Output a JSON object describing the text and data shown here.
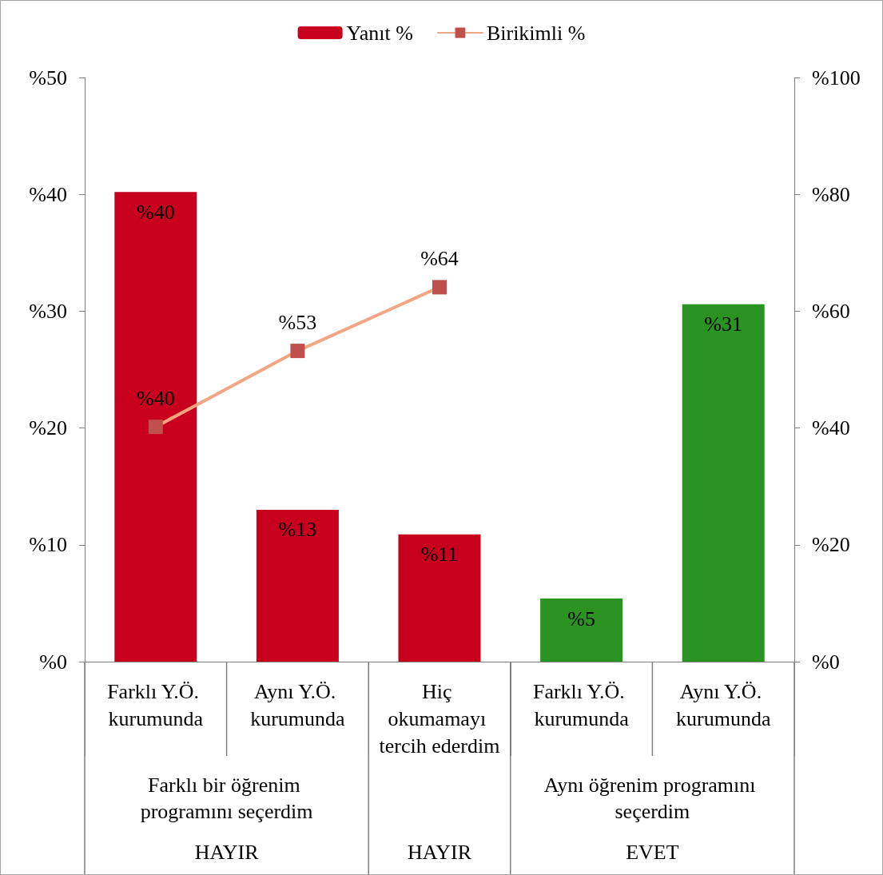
{
  "chart_data": {
    "type": "bar",
    "categories": [
      "Farklı Y.Ö. kurumunda",
      "Aynı Y.Ö. kurumunda",
      "Hiç okumamayı tercih ederdim",
      "Farklı Y.Ö. kurumunda",
      "Aynı Y.Ö. kurumunda"
    ],
    "series": [
      {
        "name": "Yanıt %",
        "colors": [
          "#c8001e",
          "#c8001e",
          "#c8001e",
          "#2a9322",
          "#2a9322"
        ],
        "values": [
          40.2,
          13,
          10.9,
          5.4,
          30.6
        ],
        "value_labels": [
          "%40",
          "%13",
          "%11",
          "%5",
          "%31"
        ]
      },
      {
        "name": "Birikimli %",
        "type": "line",
        "axis": "y2",
        "color": "#f4a582",
        "marker": "square",
        "values": [
          40.2,
          53.2,
          64.1,
          null,
          null
        ],
        "value_labels": [
          "%40",
          "%53",
          "%64",
          null,
          null
        ]
      }
    ],
    "ylim": [
      0,
      50
    ],
    "yticks": [
      {
        "value": 0,
        "label": "%0"
      },
      {
        "value": 10,
        "label": "%10"
      },
      {
        "value": 20,
        "label": "%20"
      },
      {
        "value": 30,
        "label": "%30"
      },
      {
        "value": 40,
        "label": "%40"
      },
      {
        "value": 50,
        "label": "%50"
      }
    ],
    "y2lim": [
      0,
      100
    ],
    "y2ticks": [
      {
        "value": 0,
        "label": "%0"
      },
      {
        "value": 20,
        "label": "%20"
      },
      {
        "value": 40,
        "label": "%40"
      },
      {
        "value": 60,
        "label": "%60"
      },
      {
        "value": 80,
        "label": "%80"
      },
      {
        "value": 100,
        "label": "%100"
      }
    ],
    "annotations": [
      "Farklı bir öğrenim programını seçerdim",
      "Aynı öğrenim programını seçerdim",
      "HAYIR",
      "HAYIR",
      "EVET"
    ],
    "legend": "top",
    "grid": false
  }
}
